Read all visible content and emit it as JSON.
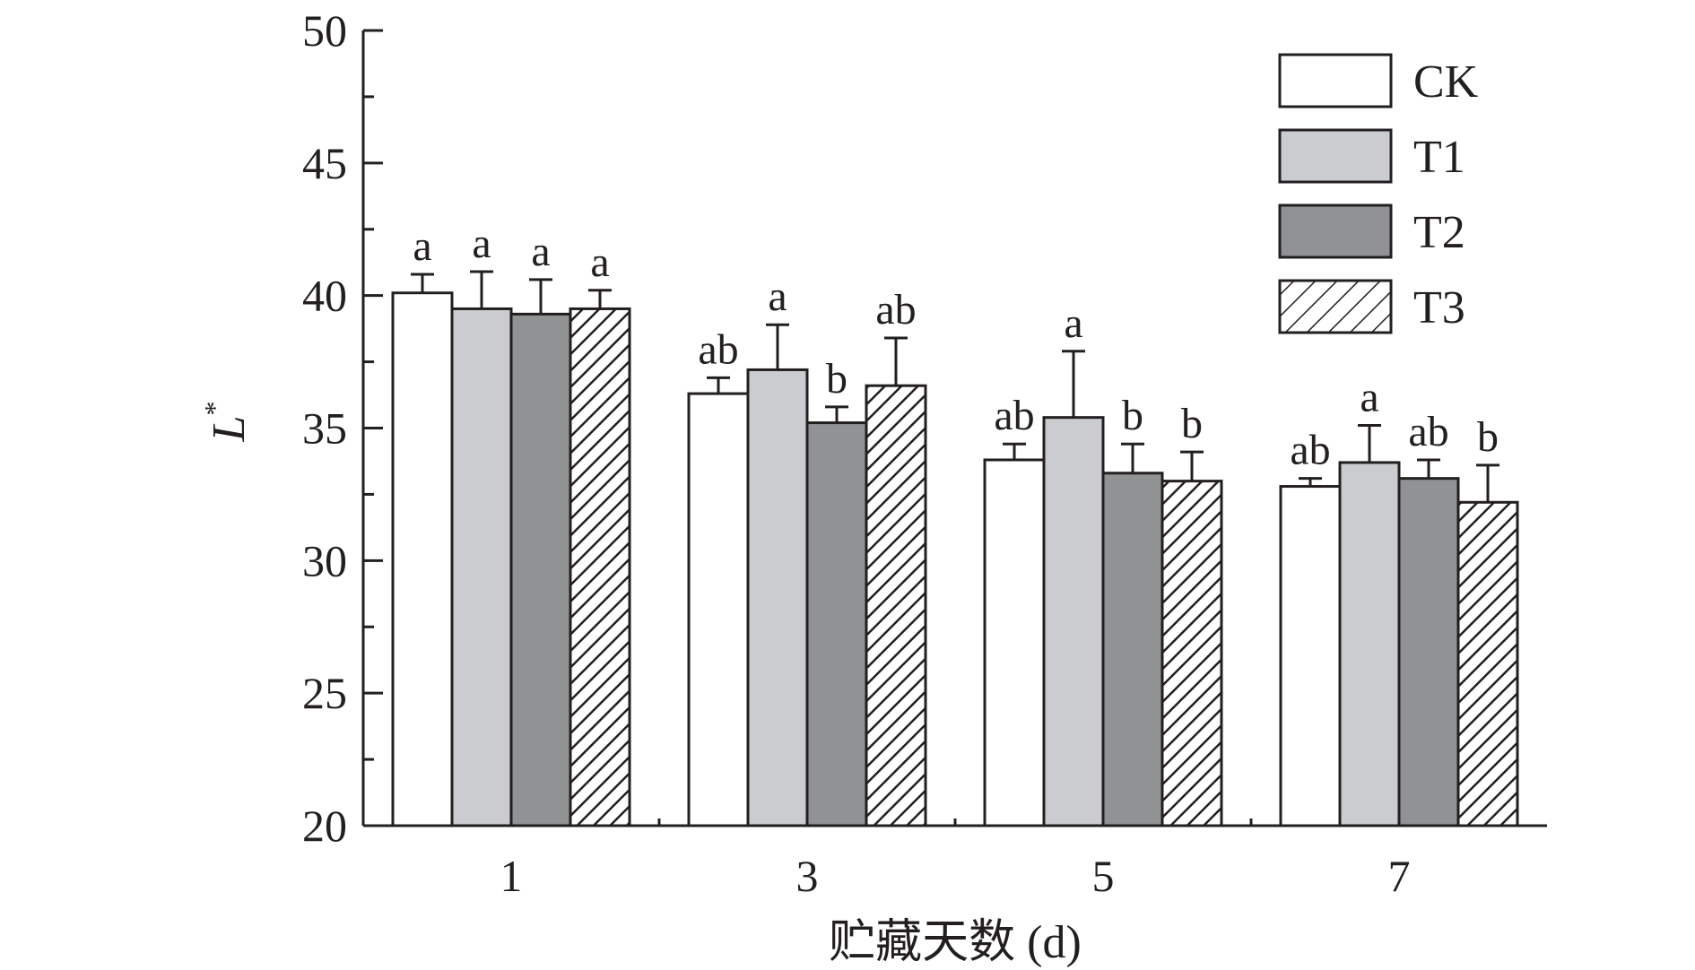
{
  "chart_data": {
    "type": "bar",
    "xlabel": "贮藏天数 (d)",
    "ylabel_main": "L",
    "ylabel_sup": "*",
    "categories": [
      "1",
      "3",
      "5",
      "7"
    ],
    "ylim": [
      20,
      50
    ],
    "yticks": [
      20,
      25,
      30,
      35,
      40,
      45,
      50
    ],
    "yticks_labels": [
      "20",
      "25",
      "30",
      "35",
      "40",
      "45",
      "50"
    ],
    "grid": false,
    "legend_position": "top-right",
    "series": [
      {
        "name": "CK",
        "fill": "#ffffff",
        "pattern": "none",
        "values": [
          40.1,
          36.3,
          33.8,
          32.8
        ],
        "errors": [
          0.7,
          0.6,
          0.6,
          0.3
        ],
        "sig": [
          "a",
          "ab",
          "ab",
          "ab"
        ]
      },
      {
        "name": "T1",
        "fill": "#cbcccf",
        "pattern": "none",
        "values": [
          39.5,
          37.2,
          35.4,
          33.7
        ],
        "errors": [
          1.4,
          1.7,
          2.5,
          1.4
        ],
        "sig": [
          "a",
          "a",
          "a",
          "a"
        ]
      },
      {
        "name": "T2",
        "fill": "#919294",
        "pattern": "none",
        "values": [
          39.3,
          35.2,
          33.3,
          33.1
        ],
        "errors": [
          1.3,
          0.6,
          1.1,
          0.7
        ],
        "sig": [
          "a",
          "b",
          "b",
          "ab"
        ]
      },
      {
        "name": "T3",
        "fill": "#ffffff",
        "pattern": "diagonal-hatch",
        "values": [
          39.5,
          36.6,
          33.0,
          32.2
        ],
        "errors": [
          0.7,
          1.8,
          1.1,
          1.4
        ],
        "sig": [
          "a",
          "ab",
          "b",
          "b"
        ]
      }
    ],
    "colors": {
      "axis": "#231f20",
      "bar_stroke": "#231f20",
      "hatch": "#231f20"
    }
  }
}
